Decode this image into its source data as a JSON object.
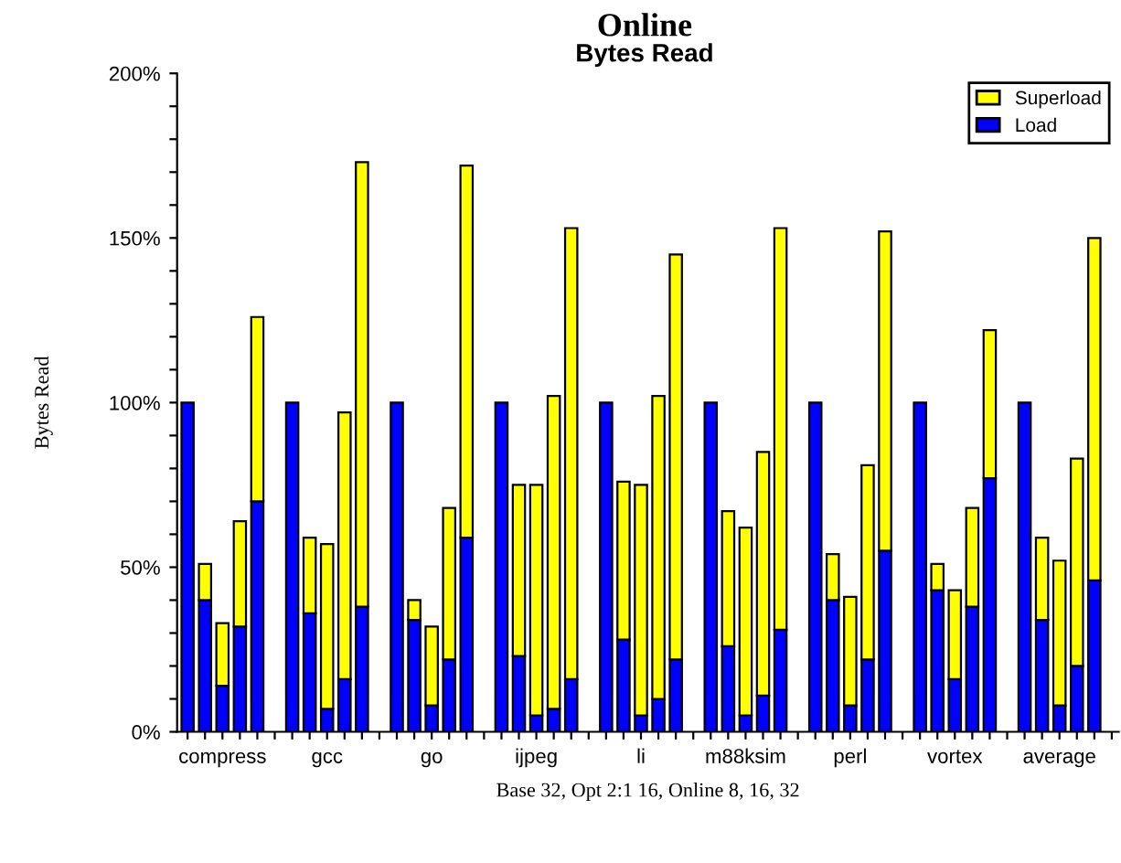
{
  "chart_data": {
    "type": "bar",
    "stacked": true,
    "title": "Online",
    "subtitle": "Bytes Read",
    "ylabel": "Bytes Read",
    "xlabel": "Base 32, Opt 2:1 16, Online 8, 16, 32",
    "categories": [
      null,
      null,
      "compress",
      null,
      null,
      null,
      null,
      null,
      "gcc",
      null,
      null,
      null,
      null,
      null,
      "go",
      null,
      null,
      null,
      null,
      null,
      "ijpeg",
      null,
      null,
      null,
      null,
      null,
      "li",
      null,
      null,
      null,
      null,
      null,
      "m88ksim",
      null,
      null,
      null,
      null,
      null,
      "perl",
      null,
      null,
      null,
      null,
      null,
      "vortex",
      null,
      null,
      null,
      null,
      null,
      "average",
      null,
      null,
      null
    ],
    "series": [
      {
        "name": "Load",
        "color": "#0000ff",
        "values": [
          100,
          40,
          14,
          32,
          70,
          null,
          100,
          36,
          7,
          16,
          38,
          null,
          100,
          34,
          8,
          22,
          59,
          null,
          100,
          23,
          5,
          7,
          16,
          null,
          100,
          28,
          5,
          10,
          22,
          null,
          100,
          26,
          5,
          11,
          31,
          null,
          100,
          40,
          8,
          22,
          55,
          null,
          100,
          43,
          16,
          38,
          77,
          null,
          100,
          34,
          8,
          20,
          46,
          null
        ]
      },
      {
        "name": "Superload",
        "color": "#ffff00",
        "values": [
          null,
          11,
          19,
          32,
          56,
          null,
          null,
          23,
          50,
          81,
          135,
          null,
          null,
          6,
          24,
          46,
          113,
          null,
          null,
          52,
          70,
          95,
          137,
          null,
          null,
          48,
          70,
          92,
          123,
          null,
          null,
          41,
          57,
          74,
          122,
          null,
          null,
          14,
          33,
          59,
          97,
          null,
          null,
          8,
          27,
          30,
          45,
          null,
          null,
          25,
          44,
          63,
          104,
          null
        ]
      }
    ],
    "ylim": [
      0,
      200
    ],
    "yticks": [
      {
        "value": 0,
        "label": "0%"
      },
      {
        "value": 10,
        "label": null
      },
      {
        "value": 20,
        "label": null
      },
      {
        "value": 30,
        "label": null
      },
      {
        "value": 40,
        "label": null
      },
      {
        "value": 50,
        "label": "50%"
      },
      {
        "value": 60,
        "label": null
      },
      {
        "value": 70,
        "label": null
      },
      {
        "value": 80,
        "label": null
      },
      {
        "value": 90,
        "label": null
      },
      {
        "value": 100,
        "label": "100%"
      },
      {
        "value": 110,
        "label": null
      },
      {
        "value": 120,
        "label": null
      },
      {
        "value": 130,
        "label": null
      },
      {
        "value": 140,
        "label": null
      },
      {
        "value": 150,
        "label": "150%"
      },
      {
        "value": 160,
        "label": null
      },
      {
        "value": 170,
        "label": null
      },
      {
        "value": 180,
        "label": null
      },
      {
        "value": 190,
        "label": null
      },
      {
        "value": 200,
        "label": "200%"
      }
    ],
    "legend": "top right"
  }
}
